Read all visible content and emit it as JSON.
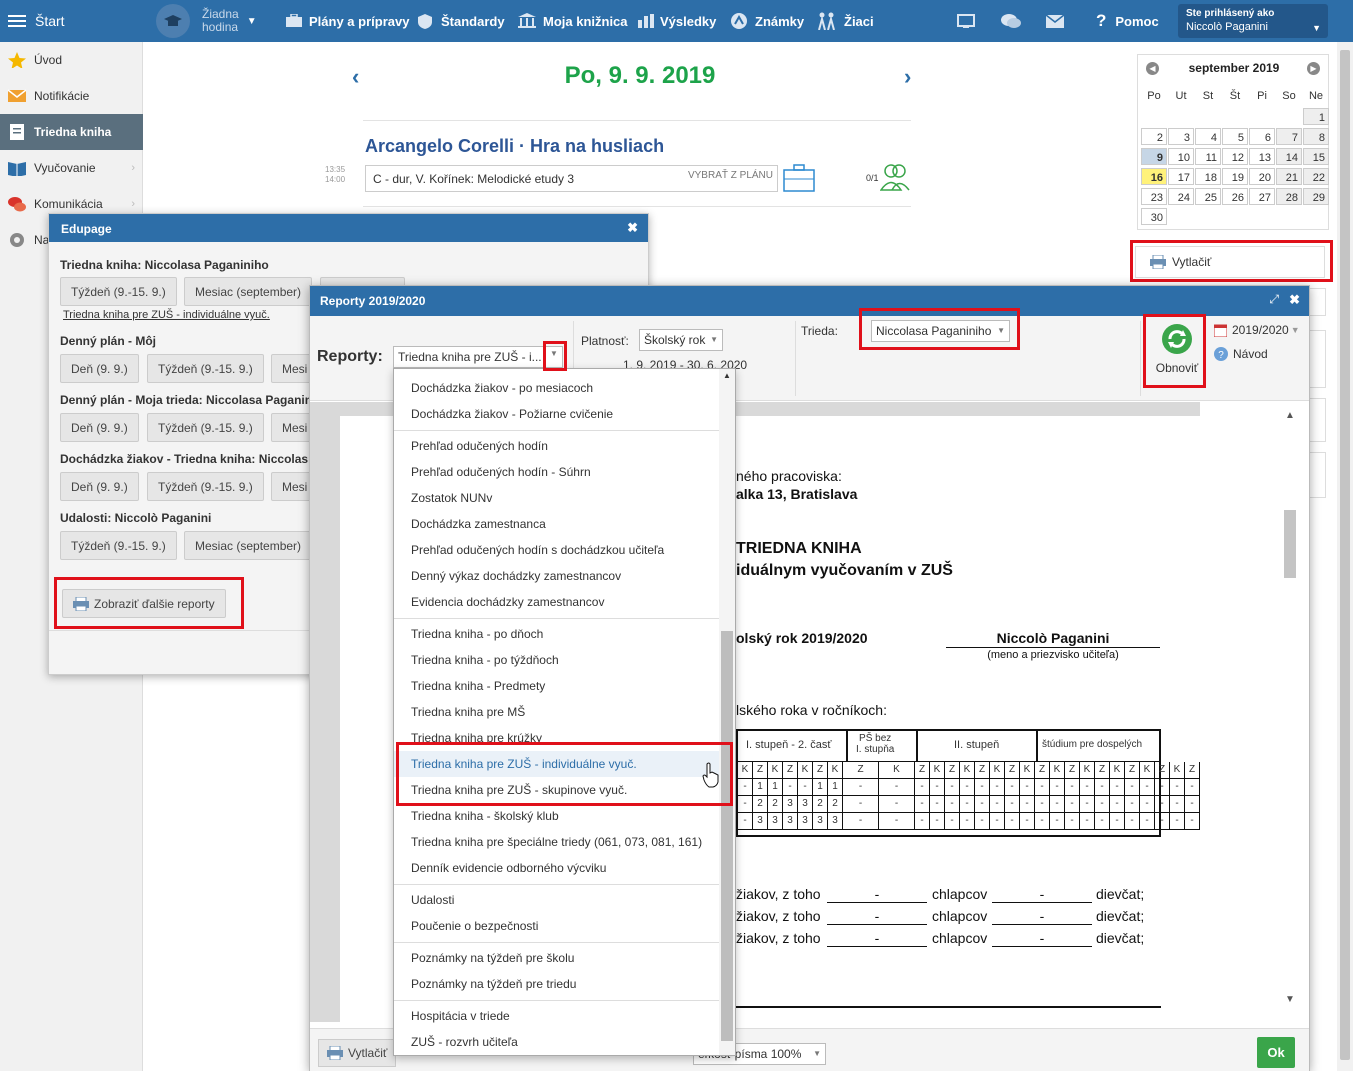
{
  "topbar": {
    "start": "Štart",
    "no_lesson_1": "Žiadna",
    "no_lesson_2": "hodina",
    "plans": "Plány a prípravy",
    "standards": "Štandardy",
    "library": "Moja knižnica",
    "results": "Výsledky",
    "grades": "Známky",
    "students": "Žiaci",
    "help": "Pomoc",
    "logged_label": "Ste prihlásený ako",
    "logged_user": "Niccolò Paganini"
  },
  "sidebar": {
    "items": [
      {
        "label": "Úvod"
      },
      {
        "label": "Notifikácie"
      },
      {
        "label": "Triedna kniha"
      },
      {
        "label": "Vyučovanie"
      },
      {
        "label": "Komunikácia"
      },
      {
        "label": "Na"
      }
    ]
  },
  "main": {
    "date": "Po, 9. 9. 2019",
    "lesson_title": "Arcangelo Corelli · Hra na husliach",
    "time_start": "13:35",
    "time_end": "14:00",
    "lesson_topic": "C - dur, V. Kořínek: Melodické etudy 3",
    "pick_from_plan": "VYBRAŤ Z PLÁNU",
    "attendance": "0/1"
  },
  "calendar": {
    "title": "september 2019",
    "weekdays": [
      "Po",
      "Ut",
      "St",
      "Št",
      "Pi",
      "So",
      "Ne"
    ],
    "print_label": "Vytlačiť"
  },
  "edupage_modal": {
    "title": "Edupage",
    "s1_title": "Triedna kniha: Niccolasa Paganiniho",
    "s1_b1": "Týždeň (9.-15. 9.)",
    "s1_b2": "Mesiac (september)",
    "s1_link": "Triedna kniha pre ZUŠ - individuálne vyuč.",
    "s2_title": "Denný plán - Môj",
    "s2_b1": "Deň (9. 9.)",
    "s2_b2": "Týždeň (9.-15. 9.)",
    "s2_b3": "Mesi",
    "s3_title": "Denný plán - Moja trieda: Niccolasa Paganin",
    "s3_b1": "Deň (9. 9.)",
    "s3_b2": "Týždeň (9.-15. 9.)",
    "s3_b3": "Mesi",
    "s4_title": "Dochádzka žiakov - Triedna kniha: Niccolas",
    "s4_b1": "Deň (9. 9.)",
    "s4_b2": "Týždeň (9.-15. 9.)",
    "s4_b3": "Mesi",
    "s5_title": "Udalosti: Niccolò Paganini",
    "s5_b1": "Týždeň (9.-15. 9.)",
    "s5_b2": "Mesiac (september)",
    "more_reports": "Zobraziť ďalšie reporty"
  },
  "reports_modal": {
    "title": "Reporty 2019/2020",
    "reports_label": "Reporty:",
    "reports_value": "Triedna kniha pre ZUŠ - i...",
    "validity_label": "Platnosť:",
    "validity_value": "Školský rok",
    "validity_range": "1. 9. 2019 - 30. 6. 2020",
    "class_label": "Trieda:",
    "class_value": "Niccolasa Paganiniho",
    "refresh": "Obnoviť",
    "year": "2019/2020",
    "guide": "Návod",
    "foot_print": "Vytlačiť",
    "foot_font": "eľkosť písma 100%",
    "ok": "Ok"
  },
  "document": {
    "workplace_label": "ného pracoviska:",
    "workplace_addr": "alka 13, Bratislava",
    "title1": "TRIEDNA KNIHA",
    "title2": "iduálnym vyučovaním v ZUŠ",
    "school_year": "olský rok 2019/2020",
    "teacher": "Niccolò Paganini",
    "teacher_caption": "(meno a priezvisko učiteľa)",
    "by_grades": "lského roka v ročníkoch:",
    "col_1": "I. stupeň - 2. časť",
    "col_2a": "PŠ bez",
    "col_2b": "I. stupňa",
    "col_3": "II. stupeň",
    "col_4": "štúdium pre dospelých",
    "students_of": "žiakov, z toho",
    "boys": "chlapcov",
    "girls": "dievčat;",
    "dash": "-"
  },
  "dropdown": {
    "items": [
      "Dochádzka žiakov - po mesiacoch",
      "Dochádzka žiakov - Požiarne cvičenie",
      "Prehľad odučených hodín",
      "Prehľad odučených hodín - Súhrn",
      "Zostatok NUNv",
      "Dochádzka zamestnanca",
      "Prehľad odučených hodín s dochádzkou učiteľa",
      "Denný výkaz dochádzky zamestnancov",
      "Evidencia dochádzky zamestnancov",
      "Triedna kniha - po dňoch",
      "Triedna kniha - po týždňoch",
      "Triedna kniha - Predmety",
      "Triedna kniha pre MŠ",
      "Triedna kniha pre krúžky",
      "Triedna kniha pre ZUŠ - individuálne vyuč.",
      "Triedna kniha pre ZUŠ - skupinove vyuč.",
      "Triedna kniha - školský klub",
      "Triedna kniha pre špeciálne triedy (061, 073, 081, 161)",
      "Denník evidencie odborného výcviku",
      "Udalosti",
      "Poučenie o bezpečnosti",
      "Poznámky na týždeň pre školu",
      "Poznámky na týždeň pre triedu",
      "Hospitácia v triede",
      "ZUŠ - rozvrh učiteľa"
    ]
  },
  "colors": {
    "brand": "#2d6ea8",
    "date_green": "#1da34a",
    "highlight_red": "#e0101a"
  }
}
